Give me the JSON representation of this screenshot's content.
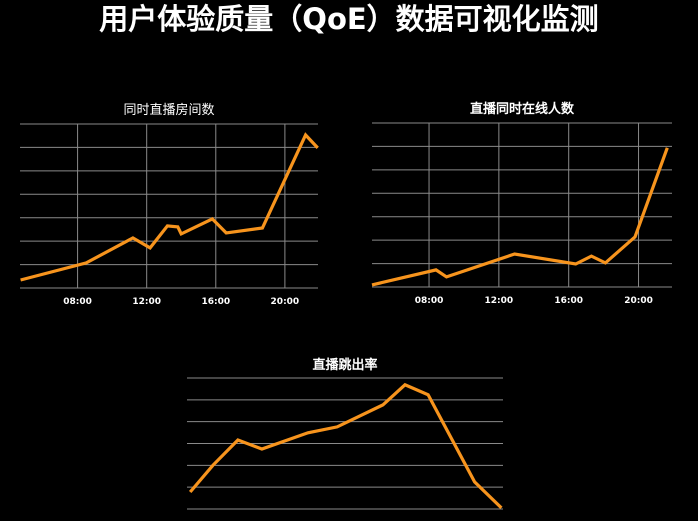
{
  "title": "用户体验质量（QoE）数据可视化监测",
  "colors": {
    "line": "#f7941d",
    "grid": "#8a8a8a",
    "background": "#000000",
    "text": "#ffffff"
  },
  "chart_data": [
    {
      "type": "line",
      "title": "同时直播房间数",
      "xlabel": "",
      "ylabel": "",
      "x_ticks": [
        "08:00",
        "12:00",
        "16:00",
        "20:00"
      ],
      "xlim": [
        "04:40",
        "21:55"
      ],
      "ylim": [
        0,
        7
      ],
      "grid": {
        "horizontal": true,
        "vertical": true,
        "horizontal_lines": 8
      },
      "y_tick_labels": false,
      "points": [
        [
          "04:42",
          0.34
        ],
        [
          "08:30",
          1.07
        ],
        [
          "11:12",
          2.14
        ],
        [
          "12:12",
          1.71
        ],
        [
          "13:12",
          2.65
        ],
        [
          "13:48",
          2.61
        ],
        [
          "14:00",
          2.31
        ],
        [
          "15:48",
          2.95
        ],
        [
          "16:36",
          2.35
        ],
        [
          "18:42",
          2.56
        ],
        [
          "21:12",
          6.53
        ],
        [
          "21:54",
          5.98
        ]
      ]
    },
    {
      "type": "line",
      "title": "直播同时在线人数",
      "xlabel": "",
      "ylabel": "",
      "x_ticks": [
        "08:00",
        "12:00",
        "16:00",
        "20:00"
      ],
      "xlim": [
        "04:44",
        "21:55"
      ],
      "ylim": [
        0,
        7
      ],
      "grid": {
        "horizontal": true,
        "vertical": true,
        "horizontal_lines": 8
      },
      "y_tick_labels": false,
      "points": [
        [
          "04:44",
          0.09
        ],
        [
          "08:24",
          0.73
        ],
        [
          "09:00",
          0.43
        ],
        [
          "12:54",
          1.41
        ],
        [
          "16:24",
          0.98
        ],
        [
          "17:18",
          1.32
        ],
        [
          "18:06",
          1.03
        ],
        [
          "19:48",
          2.14
        ],
        [
          "21:39",
          5.94
        ]
      ]
    },
    {
      "type": "line",
      "title": "直播跳出率",
      "xlabel": "",
      "ylabel": "",
      "x_ticks": [],
      "xlim": [
        0,
        10
      ],
      "ylim": [
        0,
        6
      ],
      "grid": {
        "horizontal": true,
        "vertical": false,
        "horizontal_lines": 7
      },
      "y_tick_labels": false,
      "points": [
        [
          0.1,
          0.78
        ],
        [
          0.82,
          2.0
        ],
        [
          1.61,
          3.16
        ],
        [
          2.37,
          2.75
        ],
        [
          3.83,
          3.49
        ],
        [
          4.75,
          3.76
        ],
        [
          6.2,
          4.77
        ],
        [
          6.9,
          5.69
        ],
        [
          7.63,
          5.23
        ],
        [
          9.1,
          1.24
        ],
        [
          9.95,
          0.05
        ]
      ]
    }
  ]
}
